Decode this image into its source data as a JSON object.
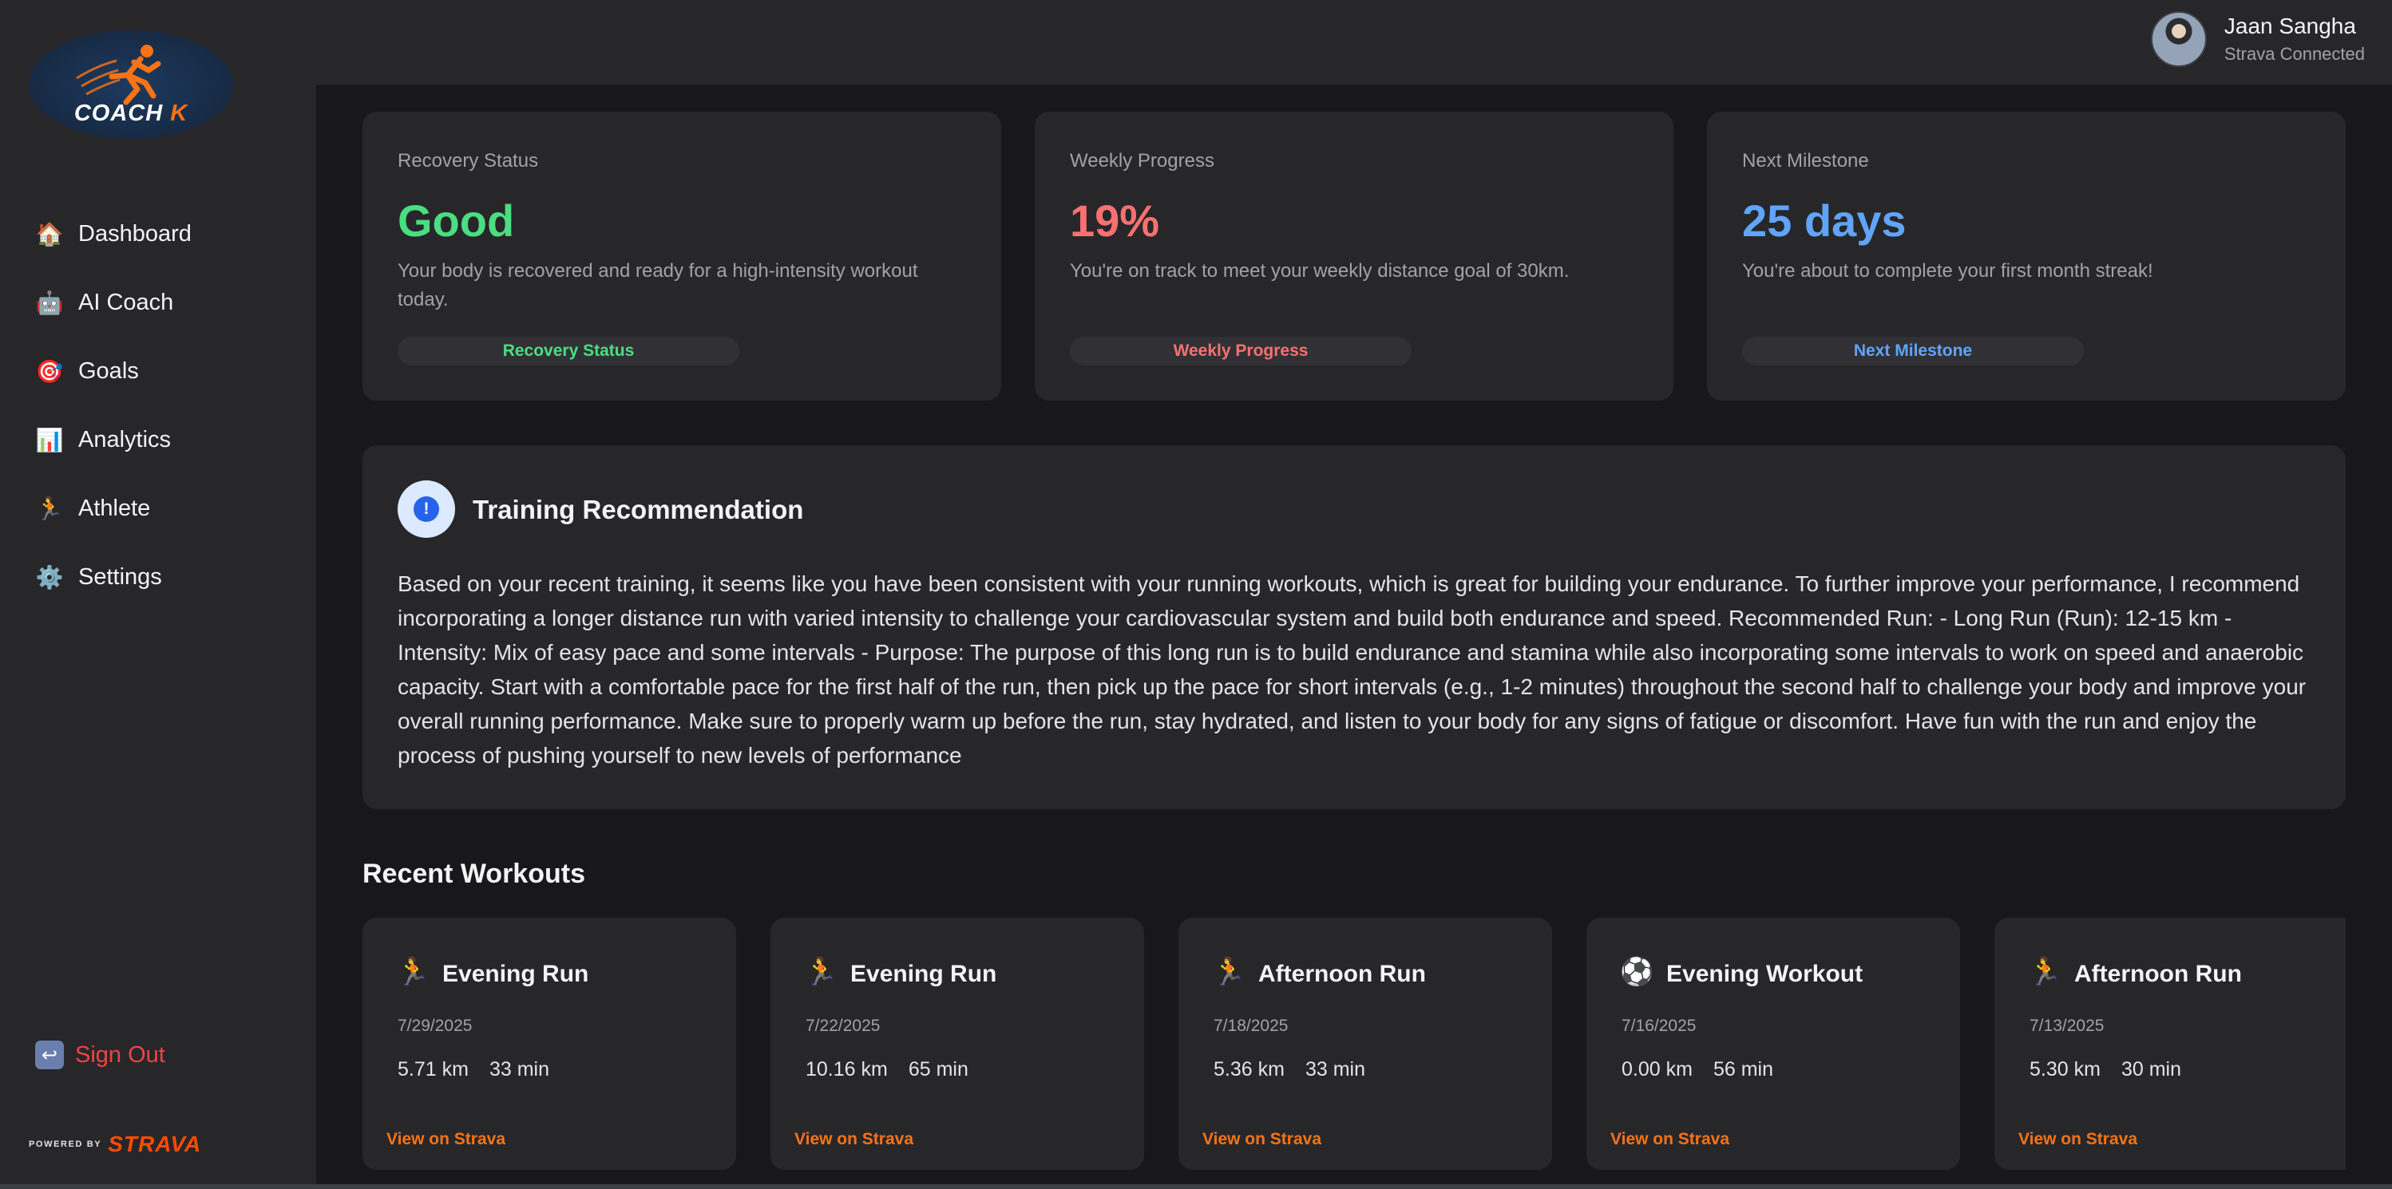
{
  "app": {
    "logo_text": "COACH",
    "logo_k": "K"
  },
  "sidebar": {
    "items": [
      {
        "label": "Dashboard",
        "icon": "🏠",
        "icon_name": "house-icon"
      },
      {
        "label": "AI Coach",
        "icon": "🤖",
        "icon_name": "robot-icon"
      },
      {
        "label": "Goals",
        "icon": "🎯",
        "icon_name": "target-icon"
      },
      {
        "label": "Analytics",
        "icon": "📊",
        "icon_name": "bar-chart-icon"
      },
      {
        "label": "Athlete",
        "icon": "🏃",
        "icon_name": "runner-icon"
      },
      {
        "label": "Settings",
        "icon": "⚙️",
        "icon_name": "gear-icon"
      }
    ],
    "signout_label": "Sign Out",
    "signout_icon": "↩",
    "powered_by": "POWERED BY",
    "strava": "STRAVA"
  },
  "header": {
    "user_name": "Jaan Sangha",
    "user_status": "Strava Connected"
  },
  "stats": {
    "recovery": {
      "label": "Recovery Status",
      "value": "Good",
      "desc": "Your body is recovered and ready for a high-intensity workout today.",
      "pill": "Recovery Status",
      "color": "#4ade80"
    },
    "weekly": {
      "label": "Weekly Progress",
      "value": "19%",
      "desc": "You're on track to meet your weekly distance goal of 30km.",
      "pill": "Weekly Progress",
      "color": "#f87171"
    },
    "milestone": {
      "label": "Next Milestone",
      "value": "25 days",
      "desc": "You're about to complete your first month streak!",
      "pill": "Next Milestone",
      "color": "#60a5fa"
    }
  },
  "recommendation": {
    "badge": "!",
    "title": "Training Recommendation",
    "text": "Based on your recent training, it seems like you have been consistent with your running workouts, which is great for building your endurance. To further improve your performance, I recommend incorporating a longer distance run with varied intensity to challenge your cardiovascular system and build both endurance and speed. Recommended Run: - Long Run (Run): 12-15 km - Intensity: Mix of easy pace and some intervals - Purpose: The purpose of this long run is to build endurance and stamina while also incorporating some intervals to work on speed and anaerobic capacity. Start with a comfortable pace for the first half of the run, then pick up the pace for short intervals (e.g., 1-2 minutes) throughout the second half to challenge your body and improve your overall running performance. Make sure to properly warm up before the run, stay hydrated, and listen to your body for any signs of fatigue or discomfort. Have fun with the run and enjoy the process of pushing yourself to new levels of performance"
  },
  "workouts": {
    "title": "Recent Workouts",
    "link_label": "View on Strava",
    "items": [
      {
        "icon": "🏃",
        "title": "Evening Run",
        "date": "7/29/2025",
        "distance": "5.71 km",
        "duration": "33 min"
      },
      {
        "icon": "🏃",
        "title": "Evening Run",
        "date": "7/22/2025",
        "distance": "10.16 km",
        "duration": "65 min"
      },
      {
        "icon": "🏃",
        "title": "Afternoon Run",
        "date": "7/18/2025",
        "distance": "5.36 km",
        "duration": "33 min"
      },
      {
        "icon": "⚽",
        "title": "Evening Workout",
        "date": "7/16/2025",
        "distance": "0.00 km",
        "duration": "56 min"
      },
      {
        "icon": "🏃",
        "title": "Afternoon Run",
        "date": "7/13/2025",
        "distance": "5.30 km",
        "duration": "30 min"
      }
    ]
  }
}
